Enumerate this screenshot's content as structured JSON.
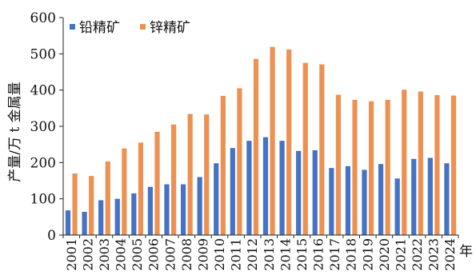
{
  "chart_data": {
    "type": "bar",
    "title": "",
    "xlabel": "年",
    "ylabel": "产量/万 t 金属量",
    "ylim": [
      0,
      600
    ],
    "yticks": [
      0,
      100,
      200,
      300,
      400,
      500,
      600
    ],
    "grid": false,
    "legend_position": "top-left",
    "categories": [
      "2001",
      "2002",
      "2003",
      "2004",
      "2005",
      "2006",
      "2007",
      "2008",
      "2009",
      "2010",
      "2011",
      "2012",
      "2013",
      "2014",
      "2015",
      "2016",
      "2017",
      "2018",
      "2019",
      "2020",
      "2021",
      "2022",
      "2023",
      "2024"
    ],
    "series": [
      {
        "name": "铅精矿",
        "color": "#4472c4",
        "values": [
          68,
          64,
          96,
          100,
          115,
          133,
          140,
          140,
          160,
          198,
          240,
          260,
          270,
          260,
          232,
          234,
          185,
          190,
          180,
          196,
          156,
          210,
          213,
          198
        ]
      },
      {
        "name": "锌精矿",
        "color": "#ed9152",
        "values": [
          170,
          163,
          203,
          239,
          255,
          285,
          305,
          334,
          333,
          384,
          405,
          486,
          519,
          512,
          475,
          471,
          387,
          373,
          369,
          373,
          401,
          396,
          386,
          385
        ]
      }
    ]
  }
}
